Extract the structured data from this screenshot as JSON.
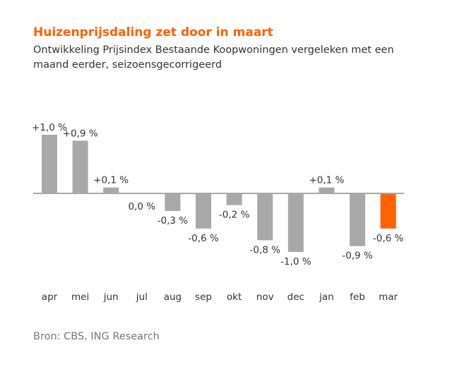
{
  "header": {
    "title": "Huizenprijsdaling zet door in maart",
    "subtitle": "Ontwikkeling Prijsindex Bestaande Koopwoningen vergeleken met een maand eerder, seizoensgecorrigeerd"
  },
  "footer": {
    "source": "Bron: CBS, ING Research"
  },
  "colors": {
    "title": "#ff6200",
    "bar_default": "#a8a8a8",
    "bar_highlight": "#ff6200",
    "zero_line": "#a8a8a8"
  },
  "chart_data": {
    "type": "bar",
    "categories": [
      "apr",
      "mei",
      "jun",
      "jul",
      "aug",
      "sep",
      "okt",
      "nov",
      "dec",
      "jan",
      "feb",
      "mar"
    ],
    "values": [
      1.0,
      0.9,
      0.1,
      0.0,
      -0.3,
      -0.6,
      -0.2,
      -0.8,
      -1.0,
      0.1,
      -0.9,
      -0.6
    ],
    "data_labels": [
      "+1,0 %",
      "+0,9 %",
      "+0,1 %",
      "0,0 %",
      "-0,3 %",
      "-0,6 %",
      "-0,2 %",
      "-0,8 %",
      "-1,0 %",
      "+0,1 %",
      "-0,9 %",
      "-0,6 %"
    ],
    "highlight_index": 11,
    "title": "Huizenprijsdaling zet door in maart",
    "xlabel": "",
    "ylabel": "",
    "ylim": [
      -1.0,
      1.0
    ],
    "grid": false,
    "legend": false
  }
}
